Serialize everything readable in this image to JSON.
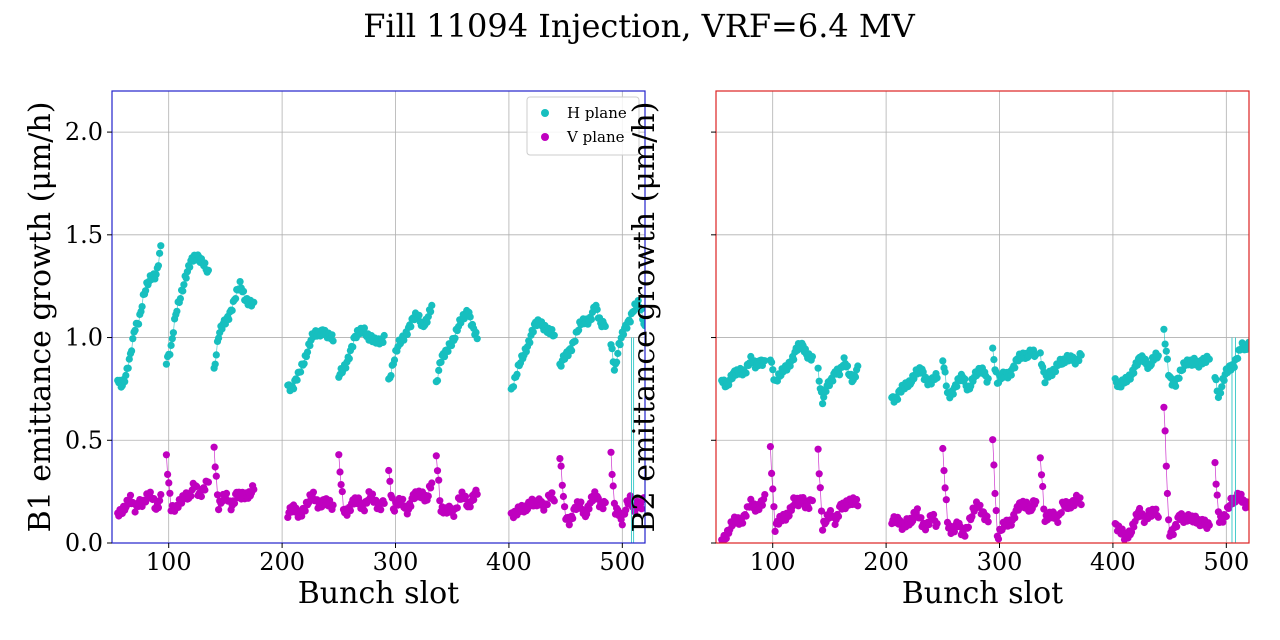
{
  "title": "Fill 11094 Injection, VRF=6.4 MV",
  "chart_data": [
    {
      "type": "scatter",
      "ylabel": "B1 emittance growth (μm/h)",
      "xlabel": "Bunch slot",
      "xlim": [
        50,
        520
      ],
      "ylim": [
        0.0,
        2.2
      ],
      "xticks": [
        "100",
        "200",
        "300",
        "400",
        "500"
      ],
      "yticks": [
        "0.0",
        "0.5",
        "1.0",
        "1.5",
        "2.0"
      ],
      "grid": true,
      "frame_color": "#2222cc",
      "legend": {
        "placement": "top-right",
        "entries": [
          {
            "label": "H plane",
            "color": "#17bfbf"
          },
          {
            "label": "V plane",
            "color": "#bf00bf"
          }
        ]
      },
      "trains": [
        {
          "start": 55,
          "end": 93,
          "h": [
            0.8,
            0.78,
            0.82,
            0.9,
            1.05,
            1.1,
            1.2,
            1.25,
            1.3,
            1.32,
            1.44
          ],
          "v": [
            0.15,
            0.17,
            0.18,
            0.2,
            0.17,
            0.22,
            0.19,
            0.21,
            0.23,
            0.18,
            0.22
          ]
        },
        {
          "start": 98,
          "end": 135,
          "h": [
            0.9,
            0.95,
            1.1,
            1.2,
            1.3,
            1.35,
            1.38,
            1.4,
            1.37,
            1.3
          ],
          "v": [
            0.43,
            0.18,
            0.15,
            0.2,
            0.25,
            0.22,
            0.27,
            0.24,
            0.28,
            0.3
          ]
        },
        {
          "start": 140,
          "end": 175,
          "h": [
            0.85,
            1.0,
            1.05,
            1.1,
            1.15,
            1.2,
            1.25,
            1.2,
            1.18,
            1.15
          ],
          "v": [
            0.48,
            0.18,
            0.2,
            0.22,
            0.19,
            0.24,
            0.21,
            0.23,
            0.25,
            0.27
          ]
        },
        {
          "start": 205,
          "end": 245,
          "h": [
            0.78,
            0.75,
            0.8,
            0.88,
            0.95,
            1.0,
            1.02,
            1.05,
            1.0,
            0.98
          ],
          "v": [
            0.15,
            0.16,
            0.14,
            0.17,
            0.19,
            0.22,
            0.2,
            0.21,
            0.18,
            0.17
          ]
        },
        {
          "start": 250,
          "end": 290,
          "h": [
            0.8,
            0.85,
            0.92,
            0.98,
            1.02,
            1.05,
            1.0,
            0.97,
            0.99,
            1.01
          ],
          "v": [
            0.4,
            0.17,
            0.16,
            0.19,
            0.21,
            0.18,
            0.22,
            0.2,
            0.19,
            0.21
          ]
        },
        {
          "start": 294,
          "end": 332,
          "h": [
            0.8,
            0.88,
            0.95,
            1.0,
            1.05,
            1.08,
            1.1,
            1.07,
            1.09,
            1.14
          ],
          "v": [
            0.36,
            0.16,
            0.18,
            0.2,
            0.17,
            0.21,
            0.23,
            0.25,
            0.22,
            0.28
          ]
        },
        {
          "start": 336,
          "end": 372,
          "h": [
            0.78,
            0.88,
            0.92,
            0.98,
            1.0,
            1.05,
            1.1,
            1.15,
            1.05,
            0.98
          ],
          "v": [
            0.45,
            0.15,
            0.14,
            0.18,
            0.16,
            0.2,
            0.22,
            0.19,
            0.23,
            0.24
          ]
        },
        {
          "start": 402,
          "end": 440,
          "h": [
            0.75,
            0.8,
            0.88,
            0.95,
            1.0,
            1.05,
            1.08,
            1.06,
            1.02,
            1.0
          ],
          "v": [
            0.15,
            0.13,
            0.16,
            0.18,
            0.2,
            0.17,
            0.21,
            0.19,
            0.22,
            0.2
          ]
        },
        {
          "start": 445,
          "end": 485,
          "h": [
            0.85,
            0.9,
            0.95,
            1.0,
            1.05,
            1.08,
            1.1,
            1.15,
            1.06,
            1.08
          ],
          "v": [
            0.4,
            0.14,
            0.12,
            0.16,
            0.18,
            0.15,
            0.2,
            0.22,
            0.19,
            0.21
          ]
        },
        {
          "start": 490,
          "end": 520,
          "h": [
            0.98,
            0.85,
            0.95,
            1.0,
            1.05,
            1.1,
            1.15,
            1.16,
            1.12,
            1.05
          ],
          "v": [
            0.42,
            0.14,
            0.16,
            0.12,
            0.18,
            0.2,
            0.15,
            0.21,
            0.19,
            0.22
          ]
        }
      ],
      "spikes": [
        {
          "x": 508,
          "y": 0.0,
          "series": "h"
        },
        {
          "x": 510,
          "y": 0.0,
          "series": "h"
        }
      ]
    },
    {
      "type": "scatter",
      "ylabel": "B2 emittance growth (μm/h)",
      "xlabel": "Bunch slot",
      "xlim": [
        50,
        520
      ],
      "ylim": [
        0.0,
        2.2
      ],
      "xticks": [
        "100",
        "200",
        "300",
        "400",
        "500"
      ],
      "yticks": [
        "",
        "",
        "",
        "",
        ""
      ],
      "grid": true,
      "frame_color": "#dd2222",
      "trains": [
        {
          "start": 55,
          "end": 93,
          "h": [
            0.8,
            0.78,
            0.8,
            0.82,
            0.85,
            0.84,
            0.88,
            0.86,
            0.9,
            0.88
          ],
          "v": [
            0.02,
            0.05,
            0.08,
            0.1,
            0.12,
            0.15,
            0.18,
            0.16,
            0.2,
            0.22
          ]
        },
        {
          "start": 98,
          "end": 135,
          "h": [
            0.92,
            0.78,
            0.8,
            0.85,
            0.88,
            0.9,
            0.95,
            0.97,
            0.92,
            0.88
          ],
          "v": [
            0.47,
            0.08,
            0.1,
            0.12,
            0.16,
            0.2,
            0.18,
            0.22,
            0.19,
            0.21
          ]
        },
        {
          "start": 140,
          "end": 175,
          "h": [
            0.85,
            0.68,
            0.75,
            0.8,
            0.85,
            0.82,
            0.88,
            0.84,
            0.8,
            0.84
          ],
          "v": [
            0.47,
            0.08,
            0.1,
            0.14,
            0.12,
            0.18,
            0.16,
            0.2,
            0.22,
            0.19
          ]
        },
        {
          "start": 205,
          "end": 245,
          "h": [
            0.72,
            0.7,
            0.74,
            0.78,
            0.8,
            0.82,
            0.84,
            0.8,
            0.78,
            0.8
          ],
          "v": [
            0.12,
            0.1,
            0.08,
            0.12,
            0.1,
            0.14,
            0.11,
            0.09,
            0.12,
            0.08
          ]
        },
        {
          "start": 250,
          "end": 290,
          "h": [
            0.88,
            0.72,
            0.75,
            0.78,
            0.8,
            0.76,
            0.8,
            0.82,
            0.85,
            0.8
          ],
          "v": [
            0.43,
            0.1,
            0.06,
            0.08,
            0.04,
            0.1,
            0.14,
            0.18,
            0.16,
            0.12
          ]
        },
        {
          "start": 294,
          "end": 332,
          "h": [
            0.95,
            0.78,
            0.8,
            0.82,
            0.85,
            0.88,
            0.9,
            0.92,
            0.94,
            0.9
          ],
          "v": [
            0.51,
            0.02,
            0.06,
            0.1,
            0.12,
            0.15,
            0.18,
            0.2,
            0.17,
            0.19
          ]
        },
        {
          "start": 336,
          "end": 372,
          "h": [
            0.92,
            0.78,
            0.82,
            0.85,
            0.88,
            0.86,
            0.9,
            0.92,
            0.88,
            0.9
          ],
          "v": [
            0.44,
            0.1,
            0.12,
            0.15,
            0.13,
            0.18,
            0.16,
            0.2,
            0.23,
            0.19
          ]
        },
        {
          "start": 402,
          "end": 440,
          "h": [
            0.8,
            0.75,
            0.78,
            0.82,
            0.85,
            0.88,
            0.9,
            0.87,
            0.89,
            0.9
          ],
          "v": [
            0.1,
            0.05,
            0.02,
            0.06,
            0.1,
            0.14,
            0.12,
            0.16,
            0.14,
            0.12
          ]
        },
        {
          "start": 445,
          "end": 485,
          "h": [
            1.02,
            0.8,
            0.78,
            0.82,
            0.85,
            0.88,
            0.9,
            0.86,
            0.88,
            0.92
          ],
          "v": [
            0.65,
            0.05,
            0.08,
            0.12,
            0.1,
            0.14,
            0.12,
            0.08,
            0.11,
            0.1
          ]
        },
        {
          "start": 490,
          "end": 520,
          "h": [
            0.82,
            0.72,
            0.78,
            0.82,
            0.85,
            0.88,
            0.92,
            0.95,
            0.93,
            0.97
          ],
          "v": [
            0.37,
            0.1,
            0.12,
            0.16,
            0.2,
            0.18,
            0.22,
            0.24,
            0.2,
            0.18
          ]
        }
      ],
      "spikes": [
        {
          "x": 505,
          "y": 0.0,
          "series": "h"
        },
        {
          "x": 508,
          "y": 0.0,
          "series": "h"
        }
      ]
    }
  ]
}
